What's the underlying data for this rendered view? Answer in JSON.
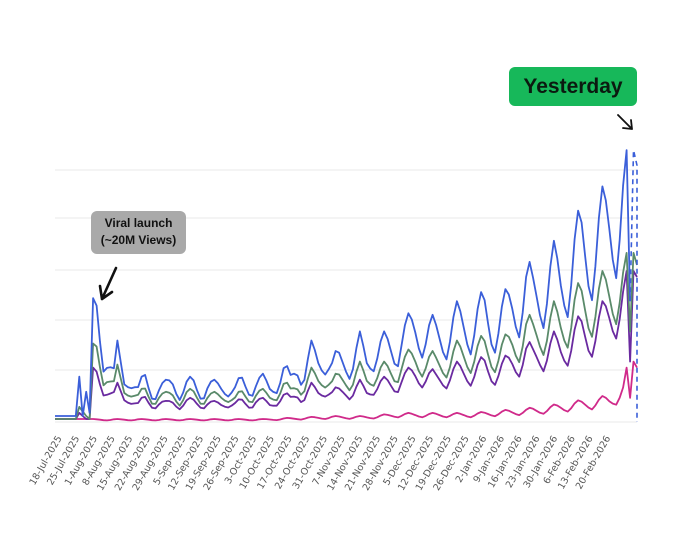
{
  "chart_data": {
    "type": "line",
    "title": "",
    "xlabel": "",
    "ylabel": "",
    "ylim": [
      0,
      100
    ],
    "grid": "horizontal",
    "x_tick_labels": [
      "18-Jul-2025",
      "25-Jul-2025",
      "1-Aug-2025",
      "8-Aug-2025",
      "15-Aug-2025",
      "22-Aug-2025",
      "29-Aug-2025",
      "5-Sep-2025",
      "12-Sep-2025",
      "19-Sep-2025",
      "26-Sep-2025",
      "3-Oct-2025",
      "10-Oct-2025",
      "17-Oct-2025",
      "24-Oct-2025",
      "31-Oct-2025",
      "7-Nov-2025",
      "14-Nov-2025",
      "21-Nov-2025",
      "28-Nov-2025",
      "5-Dec-2025",
      "12-Dec-2025",
      "19-Dec-2025",
      "26-Dec-2025",
      "2-Jan-2026",
      "9-Jan-2026",
      "16-Jan-2026",
      "23-Jan-2026",
      "30-Jan-2026",
      "6-Feb-2026",
      "13-Feb-2026",
      "20-Feb-2026"
    ],
    "series": [
      {
        "name": "Blue",
        "color": "#3b5fd9",
        "anchors": [
          [
            0,
            2
          ],
          [
            6,
            2
          ],
          [
            7,
            15
          ],
          [
            8,
            2
          ],
          [
            9,
            10
          ],
          [
            10,
            3
          ],
          [
            11,
            41
          ],
          [
            12,
            42
          ],
          [
            14,
            26
          ],
          [
            15,
            32
          ],
          [
            17,
            20
          ],
          [
            18,
            27
          ],
          [
            20,
            16
          ],
          [
            22,
            20
          ],
          [
            24,
            13
          ],
          [
            26,
            17
          ],
          [
            28,
            12
          ],
          [
            30,
            15
          ],
          [
            32,
            14
          ],
          [
            34,
            16
          ],
          [
            36,
            13
          ],
          [
            38,
            15
          ],
          [
            40,
            15
          ],
          [
            42,
            12
          ],
          [
            44,
            16
          ],
          [
            46,
            14
          ],
          [
            48,
            14
          ],
          [
            50,
            15
          ],
          [
            52,
            13
          ],
          [
            54,
            16
          ],
          [
            56,
            14
          ],
          [
            58,
            17
          ],
          [
            60,
            16
          ],
          [
            62,
            14
          ],
          [
            64,
            17
          ],
          [
            66,
            20
          ],
          [
            68,
            17
          ],
          [
            70,
            24
          ],
          [
            72,
            20
          ],
          [
            74,
            27
          ],
          [
            76,
            25
          ],
          [
            78,
            28
          ],
          [
            80,
            22
          ],
          [
            82,
            25
          ],
          [
            84,
            26
          ],
          [
            86,
            25
          ],
          [
            88,
            30
          ],
          [
            90,
            25
          ],
          [
            92,
            30
          ],
          [
            94,
            30
          ],
          [
            96,
            30
          ],
          [
            98,
            30
          ],
          [
            100,
            36
          ],
          [
            102,
            36
          ],
          [
            104,
            38
          ],
          [
            106,
            38
          ],
          [
            108,
            36
          ],
          [
            110,
            35
          ],
          [
            112,
            36
          ],
          [
            114,
            38
          ],
          [
            116,
            40
          ],
          [
            118,
            40
          ],
          [
            120,
            40
          ],
          [
            122,
            42
          ],
          [
            124,
            44
          ],
          [
            126,
            40
          ],
          [
            128,
            42
          ],
          [
            130,
            44
          ],
          [
            132,
            48
          ],
          [
            134,
            50
          ],
          [
            136,
            54
          ],
          [
            138,
            52
          ],
          [
            140,
            55
          ],
          [
            142,
            56
          ],
          [
            144,
            60
          ],
          [
            146,
            58
          ],
          [
            148,
            62
          ],
          [
            150,
            68
          ],
          [
            152,
            72
          ],
          [
            154,
            70
          ],
          [
            156,
            74
          ],
          [
            158,
            78
          ],
          [
            160,
            82
          ],
          [
            162,
            85
          ],
          [
            164,
            88
          ],
          [
            165,
            90
          ],
          [
            166,
            40
          ],
          [
            167,
            90
          ],
          [
            168,
            85
          ]
        ],
        "amp": 0.55,
        "dashed_tail": true
      },
      {
        "name": "Green",
        "color": "#5a8a6a",
        "anchors": [
          [
            0,
            1
          ],
          [
            6,
            1
          ],
          [
            7,
            5
          ],
          [
            9,
            2
          ],
          [
            10,
            1
          ],
          [
            11,
            26
          ],
          [
            12,
            27
          ],
          [
            14,
            18
          ],
          [
            15,
            22
          ],
          [
            17,
            15
          ],
          [
            18,
            19
          ],
          [
            20,
            12
          ],
          [
            22,
            14
          ],
          [
            24,
            10
          ],
          [
            26,
            12
          ],
          [
            28,
            9
          ],
          [
            30,
            11
          ],
          [
            32,
            10
          ],
          [
            34,
            11
          ],
          [
            36,
            9
          ],
          [
            38,
            11
          ],
          [
            40,
            11
          ],
          [
            42,
            9
          ],
          [
            44,
            11
          ],
          [
            46,
            10
          ],
          [
            48,
            10
          ],
          [
            50,
            11
          ],
          [
            52,
            9
          ],
          [
            54,
            11
          ],
          [
            56,
            10
          ],
          [
            58,
            12
          ],
          [
            60,
            11
          ],
          [
            62,
            10
          ],
          [
            64,
            12
          ],
          [
            66,
            14
          ],
          [
            68,
            12
          ],
          [
            70,
            16
          ],
          [
            72,
            14
          ],
          [
            74,
            18
          ],
          [
            76,
            17
          ],
          [
            78,
            19
          ],
          [
            80,
            15
          ],
          [
            82,
            17
          ],
          [
            84,
            18
          ],
          [
            86,
            17
          ],
          [
            88,
            20
          ],
          [
            90,
            17
          ],
          [
            92,
            20
          ],
          [
            94,
            20
          ],
          [
            96,
            20
          ],
          [
            98,
            20
          ],
          [
            100,
            24
          ],
          [
            102,
            24
          ],
          [
            104,
            25
          ],
          [
            106,
            25
          ],
          [
            108,
            24
          ],
          [
            110,
            23
          ],
          [
            112,
            24
          ],
          [
            114,
            25
          ],
          [
            116,
            27
          ],
          [
            118,
            27
          ],
          [
            120,
            27
          ],
          [
            122,
            28
          ],
          [
            124,
            29
          ],
          [
            126,
            27
          ],
          [
            128,
            28
          ],
          [
            130,
            29
          ],
          [
            132,
            32
          ],
          [
            134,
            33
          ],
          [
            136,
            36
          ],
          [
            138,
            35
          ],
          [
            140,
            37
          ],
          [
            142,
            37
          ],
          [
            144,
            40
          ],
          [
            146,
            39
          ],
          [
            148,
            41
          ],
          [
            150,
            45
          ],
          [
            152,
            47
          ],
          [
            154,
            46
          ],
          [
            156,
            48
          ],
          [
            158,
            50
          ],
          [
            160,
            52
          ],
          [
            162,
            54
          ],
          [
            164,
            55
          ],
          [
            165,
            56
          ],
          [
            166,
            30
          ],
          [
            167,
            56
          ],
          [
            168,
            52
          ]
        ],
        "amp": 0.5
      },
      {
        "name": "Purple",
        "color": "#6a2aa0",
        "anchors": [
          [
            0,
            1
          ],
          [
            6,
            1
          ],
          [
            7,
            3
          ],
          [
            9,
            1
          ],
          [
            10,
            1
          ],
          [
            11,
            18
          ],
          [
            12,
            18
          ],
          [
            14,
            13
          ],
          [
            15,
            15
          ],
          [
            17,
            11
          ],
          [
            18,
            13
          ],
          [
            20,
            9
          ],
          [
            22,
            10
          ],
          [
            24,
            7
          ],
          [
            26,
            9
          ],
          [
            28,
            7
          ],
          [
            30,
            8
          ],
          [
            32,
            7
          ],
          [
            34,
            8
          ],
          [
            36,
            7
          ],
          [
            38,
            8
          ],
          [
            40,
            8
          ],
          [
            42,
            7
          ],
          [
            44,
            8
          ],
          [
            46,
            7
          ],
          [
            48,
            7
          ],
          [
            50,
            8
          ],
          [
            52,
            7
          ],
          [
            54,
            8
          ],
          [
            56,
            7
          ],
          [
            58,
            9
          ],
          [
            60,
            8
          ],
          [
            62,
            7
          ],
          [
            64,
            9
          ],
          [
            66,
            10
          ],
          [
            68,
            9
          ],
          [
            70,
            12
          ],
          [
            72,
            10
          ],
          [
            74,
            13
          ],
          [
            76,
            12
          ],
          [
            78,
            14
          ],
          [
            80,
            11
          ],
          [
            82,
            12
          ],
          [
            84,
            13
          ],
          [
            86,
            12
          ],
          [
            88,
            14
          ],
          [
            90,
            12
          ],
          [
            92,
            15
          ],
          [
            94,
            15
          ],
          [
            96,
            15
          ],
          [
            98,
            15
          ],
          [
            100,
            18
          ],
          [
            102,
            18
          ],
          [
            104,
            19
          ],
          [
            106,
            19
          ],
          [
            108,
            18
          ],
          [
            110,
            17
          ],
          [
            112,
            18
          ],
          [
            114,
            19
          ],
          [
            116,
            20
          ],
          [
            118,
            20
          ],
          [
            120,
            20
          ],
          [
            122,
            21
          ],
          [
            124,
            22
          ],
          [
            126,
            20
          ],
          [
            128,
            21
          ],
          [
            130,
            22
          ],
          [
            132,
            24
          ],
          [
            134,
            25
          ],
          [
            136,
            27
          ],
          [
            138,
            26
          ],
          [
            140,
            28
          ],
          [
            142,
            28
          ],
          [
            144,
            30
          ],
          [
            146,
            29
          ],
          [
            148,
            31
          ],
          [
            150,
            34
          ],
          [
            152,
            36
          ],
          [
            154,
            35
          ],
          [
            156,
            37
          ],
          [
            158,
            40
          ],
          [
            160,
            43
          ],
          [
            162,
            46
          ],
          [
            164,
            48
          ],
          [
            165,
            50
          ],
          [
            166,
            20
          ],
          [
            167,
            50
          ],
          [
            168,
            48
          ]
        ],
        "amp": 0.5
      },
      {
        "name": "Magenta",
        "color": "#d02a8a",
        "anchors": [
          [
            0,
            1
          ],
          [
            10,
            1
          ],
          [
            11,
            1
          ],
          [
            20,
            1
          ],
          [
            40,
            1
          ],
          [
            60,
            1
          ],
          [
            80,
            2
          ],
          [
            90,
            2
          ],
          [
            100,
            3
          ],
          [
            110,
            3
          ],
          [
            120,
            3
          ],
          [
            130,
            4
          ],
          [
            140,
            5
          ],
          [
            145,
            6
          ],
          [
            150,
            7
          ],
          [
            155,
            8
          ],
          [
            160,
            9
          ],
          [
            162,
            11
          ],
          [
            164,
            13
          ],
          [
            165,
            18
          ],
          [
            166,
            8
          ],
          [
            167,
            20
          ],
          [
            168,
            18
          ]
        ],
        "amp": 0.6
      }
    ],
    "annotations": [
      {
        "text_lines": [
          "Viral launch",
          "(~20M Views)"
        ],
        "target": "late-Jul-2025 spike"
      },
      {
        "text": "Yesterday",
        "target": "last data point"
      }
    ]
  },
  "callouts": {
    "viral_line1": "Viral launch",
    "viral_line2": "(~20M Views)",
    "yesterday": "Yesterday"
  }
}
